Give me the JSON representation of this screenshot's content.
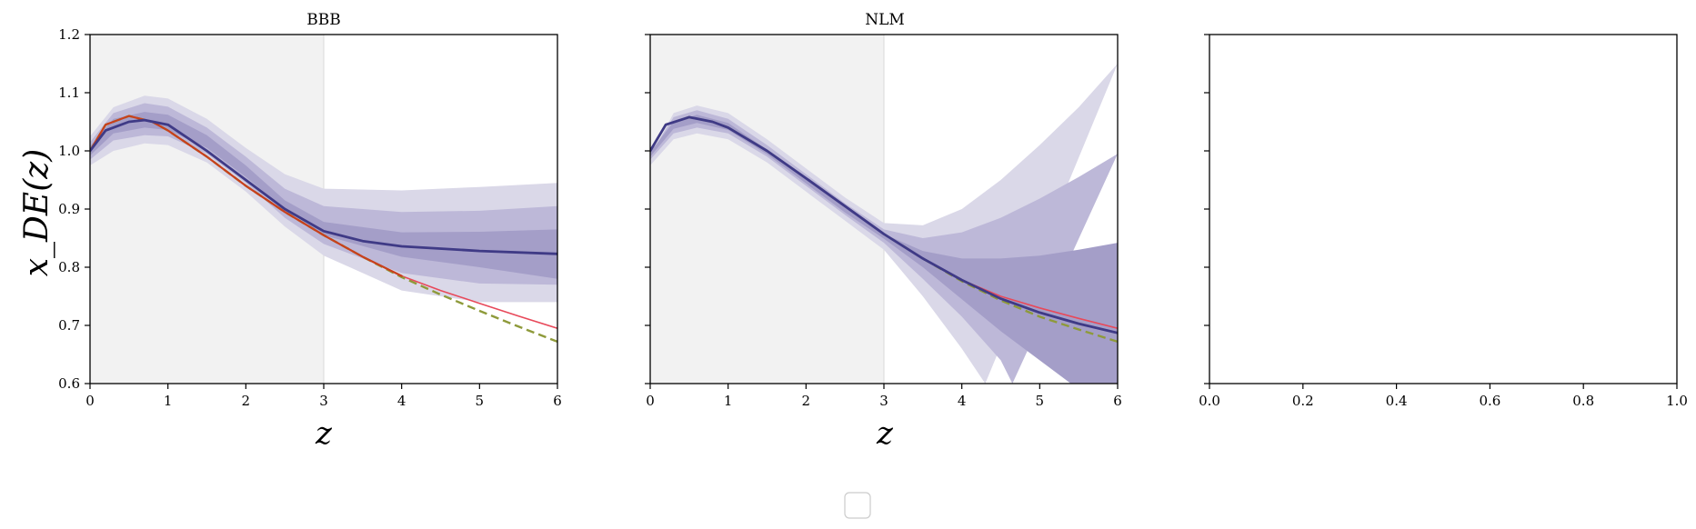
{
  "figure": {
    "ylabel": "x_DE(z)",
    "legend": {
      "entries": [],
      "placement": "bottom-center"
    }
  },
  "chart_data": [
    {
      "type": "line",
      "title": "BBB",
      "xlabel": "z",
      "ylabel": "x_DE(z)",
      "xlim": [
        0,
        6
      ],
      "ylim": [
        0.6,
        1.2
      ],
      "xticks": [
        "0",
        "1",
        "2",
        "3",
        "4",
        "5",
        "6"
      ],
      "yticks": [
        "0.6",
        "0.7",
        "0.8",
        "0.9",
        "1.0",
        "1.1",
        "1.2"
      ],
      "shaded_region": {
        "x": [
          0,
          3
        ],
        "color": "#f2f2f2"
      },
      "bands": [
        {
          "level": 3,
          "color": "#dad8e8",
          "upper": [
            [
              0,
              1.025
            ],
            [
              0.3,
              1.075
            ],
            [
              0.7,
              1.095
            ],
            [
              1,
              1.09
            ],
            [
              1.5,
              1.055
            ],
            [
              2,
              1.005
            ],
            [
              2.5,
              0.96
            ],
            [
              3,
              0.935
            ],
            [
              4,
              0.932
            ],
            [
              5,
              0.938
            ],
            [
              6,
              0.945
            ]
          ],
          "lower": [
            [
              0,
              0.975
            ],
            [
              0.3,
              1.0
            ],
            [
              0.7,
              1.013
            ],
            [
              1,
              1.01
            ],
            [
              1.5,
              0.98
            ],
            [
              2,
              0.93
            ],
            [
              2.5,
              0.87
            ],
            [
              3,
              0.82
            ],
            [
              4,
              0.76
            ],
            [
              5,
              0.74
            ],
            [
              6,
              0.74
            ]
          ]
        },
        {
          "level": 2,
          "color": "#bdb8d8",
          "upper": [
            [
              0,
              1.015
            ],
            [
              0.3,
              1.065
            ],
            [
              0.7,
              1.082
            ],
            [
              1,
              1.076
            ],
            [
              1.5,
              1.04
            ],
            [
              2,
              0.99
            ],
            [
              2.5,
              0.935
            ],
            [
              3,
              0.905
            ],
            [
              4,
              0.895
            ],
            [
              5,
              0.897
            ],
            [
              6,
              0.905
            ]
          ],
          "lower": [
            [
              0,
              0.985
            ],
            [
              0.3,
              1.018
            ],
            [
              0.7,
              1.027
            ],
            [
              1,
              1.025
            ],
            [
              1.5,
              0.995
            ],
            [
              2,
              0.945
            ],
            [
              2.5,
              0.885
            ],
            [
              3,
              0.84
            ],
            [
              4,
              0.79
            ],
            [
              5,
              0.772
            ],
            [
              6,
              0.77
            ]
          ]
        },
        {
          "level": 1,
          "color": "#a49ec8",
          "upper": [
            [
              0,
              1.008
            ],
            [
              0.3,
              1.055
            ],
            [
              0.7,
              1.067
            ],
            [
              1,
              1.062
            ],
            [
              1.5,
              1.027
            ],
            [
              2,
              0.975
            ],
            [
              2.5,
              0.915
            ],
            [
              3,
              0.878
            ],
            [
              4,
              0.86
            ],
            [
              5,
              0.861
            ],
            [
              6,
              0.865
            ]
          ],
          "lower": [
            [
              0,
              0.992
            ],
            [
              0.3,
              1.03
            ],
            [
              0.7,
              1.04
            ],
            [
              1,
              1.036
            ],
            [
              1.5,
              1.005
            ],
            [
              2,
              0.955
            ],
            [
              2.5,
              0.9
            ],
            [
              3,
              0.855
            ],
            [
              4,
              0.818
            ],
            [
              5,
              0.8
            ],
            [
              6,
              0.78
            ]
          ]
        }
      ],
      "series": [
        {
          "style": "solid",
          "color": "#e8495a",
          "width": 1.6,
          "points": [
            [
              0,
              1.0
            ],
            [
              0.2,
              1.045
            ],
            [
              0.5,
              1.06
            ],
            [
              0.8,
              1.05
            ],
            [
              1,
              1.035
            ],
            [
              1.5,
              0.99
            ],
            [
              2,
              0.94
            ],
            [
              2.5,
              0.895
            ],
            [
              3,
              0.855
            ],
            [
              3.5,
              0.818
            ],
            [
              4,
              0.785
            ],
            [
              4.5,
              0.76
            ],
            [
              5,
              0.738
            ],
            [
              5.5,
              0.716
            ],
            [
              6,
              0.695
            ]
          ]
        },
        {
          "style": "dashed",
          "color": "#8e9a3a",
          "width": 2.4,
          "points": [
            [
              0,
              1.0
            ],
            [
              0.2,
              1.045
            ],
            [
              0.5,
              1.06
            ],
            [
              0.8,
              1.05
            ],
            [
              1,
              1.035
            ],
            [
              1.5,
              0.99
            ],
            [
              2,
              0.94
            ],
            [
              2.5,
              0.895
            ],
            [
              3,
              0.855
            ],
            [
              3.5,
              0.818
            ],
            [
              4,
              0.783
            ],
            [
              4.5,
              0.753
            ],
            [
              5,
              0.725
            ],
            [
              5.5,
              0.698
            ],
            [
              6,
              0.672
            ]
          ]
        },
        {
          "style": "solid",
          "color": "#c8401c",
          "width": 2.2,
          "points": [
            [
              0,
              1.0
            ],
            [
              0.2,
              1.045
            ],
            [
              0.5,
              1.06
            ],
            [
              0.8,
              1.05
            ],
            [
              1,
              1.035
            ],
            [
              1.5,
              0.99
            ],
            [
              2,
              0.94
            ],
            [
              2.5,
              0.895
            ],
            [
              3,
              0.855
            ],
            [
              3.5,
              0.818
            ],
            [
              4,
              0.785
            ]
          ]
        },
        {
          "style": "solid",
          "color": "#3f3a86",
          "width": 2.8,
          "points": [
            [
              0,
              1.0
            ],
            [
              0.2,
              1.035
            ],
            [
              0.5,
              1.05
            ],
            [
              0.7,
              1.053
            ],
            [
              1,
              1.045
            ],
            [
              1.5,
              1.0
            ],
            [
              2,
              0.95
            ],
            [
              2.5,
              0.9
            ],
            [
              3,
              0.862
            ],
            [
              3.5,
              0.845
            ],
            [
              4,
              0.836
            ],
            [
              5,
              0.828
            ],
            [
              6,
              0.823
            ]
          ]
        }
      ]
    },
    {
      "type": "line",
      "title": "NLM",
      "xlabel": "z",
      "xlim": [
        0,
        6
      ],
      "ylim": [
        0.6,
        1.2
      ],
      "xticks": [
        "0",
        "1",
        "2",
        "3",
        "4",
        "5",
        "6"
      ],
      "shaded_region": {
        "x": [
          0,
          3
        ],
        "color": "#f2f2f2"
      },
      "bands": [
        {
          "level": 3,
          "color": "#dad8e8",
          "upper": [
            [
              0,
              0.99
            ],
            [
              0.3,
              1.065
            ],
            [
              0.6,
              1.078
            ],
            [
              1,
              1.065
            ],
            [
              1.5,
              1.02
            ],
            [
              2,
              0.97
            ],
            [
              2.5,
              0.92
            ],
            [
              3,
              0.876
            ],
            [
              3.5,
              0.872
            ],
            [
              4,
              0.9
            ],
            [
              4.5,
              0.95
            ],
            [
              5,
              1.01
            ],
            [
              5.5,
              1.075
            ],
            [
              6,
              1.15
            ]
          ],
          "lower": [
            [
              0,
              0.975
            ],
            [
              0.3,
              1.02
            ],
            [
              0.6,
              1.03
            ],
            [
              1,
              1.02
            ],
            [
              1.5,
              0.98
            ],
            [
              2,
              0.93
            ],
            [
              2.5,
              0.88
            ],
            [
              3,
              0.83
            ],
            [
              3.5,
              0.75
            ],
            [
              4,
              0.66
            ],
            [
              4.3,
              0.6
            ]
          ]
        },
        {
          "level": 2,
          "color": "#bdb8d8",
          "upper": [
            [
              0,
              0.995
            ],
            [
              0.3,
              1.058
            ],
            [
              0.6,
              1.07
            ],
            [
              1,
              1.055
            ],
            [
              1.5,
              1.01
            ],
            [
              2,
              0.96
            ],
            [
              2.5,
              0.91
            ],
            [
              3,
              0.865
            ],
            [
              3.5,
              0.85
            ],
            [
              4,
              0.86
            ],
            [
              4.5,
              0.885
            ],
            [
              5,
              0.918
            ],
            [
              5.5,
              0.955
            ],
            [
              6,
              0.995
            ]
          ],
          "lower": [
            [
              0,
              0.985
            ],
            [
              0.3,
              1.03
            ],
            [
              0.6,
              1.04
            ],
            [
              1,
              1.03
            ],
            [
              1.5,
              0.99
            ],
            [
              2,
              0.94
            ],
            [
              2.5,
              0.89
            ],
            [
              3,
              0.842
            ],
            [
              3.5,
              0.78
            ],
            [
              4,
              0.715
            ],
            [
              4.5,
              0.64
            ],
            [
              4.65,
              0.6
            ]
          ]
        },
        {
          "level": 1,
          "color": "#a49ec8",
          "upper": [
            [
              0,
              0.998
            ],
            [
              0.3,
              1.05
            ],
            [
              0.6,
              1.062
            ],
            [
              1,
              1.048
            ],
            [
              1.5,
              1.002
            ],
            [
              2,
              0.952
            ],
            [
              2.5,
              0.902
            ],
            [
              3,
              0.857
            ],
            [
              3.5,
              0.828
            ],
            [
              4,
              0.815
            ],
            [
              4.5,
              0.815
            ],
            [
              5,
              0.82
            ],
            [
              5.5,
              0.83
            ],
            [
              6,
              0.842
            ]
          ],
          "lower": [
            [
              0,
              0.99
            ],
            [
              0.3,
              1.038
            ],
            [
              0.6,
              1.048
            ],
            [
              1,
              1.036
            ],
            [
              1.5,
              0.994
            ],
            [
              2,
              0.944
            ],
            [
              2.5,
              0.894
            ],
            [
              3,
              0.849
            ],
            [
              3.5,
              0.8
            ],
            [
              4,
              0.745
            ],
            [
              4.5,
              0.69
            ],
            [
              5,
              0.64
            ],
            [
              5.4,
              0.6
            ],
            [
              6,
              0.6
            ]
          ]
        }
      ],
      "series": [
        {
          "style": "solid",
          "color": "#e8495a",
          "width": 1.6,
          "points": [
            [
              0,
              1.0
            ],
            [
              0.2,
              1.045
            ],
            [
              0.5,
              1.058
            ],
            [
              0.8,
              1.05
            ],
            [
              1,
              1.04
            ],
            [
              1.5,
              1.0
            ],
            [
              2,
              0.953
            ],
            [
              2.5,
              0.905
            ],
            [
              3,
              0.857
            ],
            [
              3.5,
              0.815
            ],
            [
              4,
              0.778
            ],
            [
              4.5,
              0.75
            ],
            [
              5,
              0.73
            ],
            [
              5.5,
              0.712
            ],
            [
              6,
              0.695
            ]
          ]
        },
        {
          "style": "dashed",
          "color": "#8e9a3a",
          "width": 2.4,
          "points": [
            [
              0,
              1.0
            ],
            [
              0.2,
              1.045
            ],
            [
              0.5,
              1.058
            ],
            [
              0.8,
              1.05
            ],
            [
              1,
              1.04
            ],
            [
              1.5,
              1.0
            ],
            [
              2,
              0.953
            ],
            [
              2.5,
              0.905
            ],
            [
              3,
              0.857
            ],
            [
              3.5,
              0.815
            ],
            [
              4,
              0.776
            ],
            [
              4.5,
              0.743
            ],
            [
              5,
              0.715
            ],
            [
              5.5,
              0.693
            ],
            [
              6,
              0.672
            ]
          ]
        },
        {
          "style": "solid",
          "color": "#3f3a86",
          "width": 2.8,
          "points": [
            [
              0,
              1.0
            ],
            [
              0.2,
              1.045
            ],
            [
              0.5,
              1.058
            ],
            [
              0.8,
              1.05
            ],
            [
              1,
              1.04
            ],
            [
              1.5,
              1.0
            ],
            [
              2,
              0.953
            ],
            [
              2.5,
              0.905
            ],
            [
              3,
              0.857
            ],
            [
              3.5,
              0.815
            ],
            [
              4,
              0.778
            ],
            [
              4.5,
              0.746
            ],
            [
              5,
              0.722
            ],
            [
              5.5,
              0.703
            ],
            [
              6,
              0.687
            ]
          ]
        }
      ]
    },
    {
      "type": "line",
      "title": "",
      "xlim": [
        0,
        1
      ],
      "ylim": [
        0.6,
        1.2
      ],
      "xticks": [
        "0.0",
        "0.2",
        "0.4",
        "0.6",
        "0.8",
        "1.0"
      ],
      "bands": [],
      "series": []
    }
  ]
}
